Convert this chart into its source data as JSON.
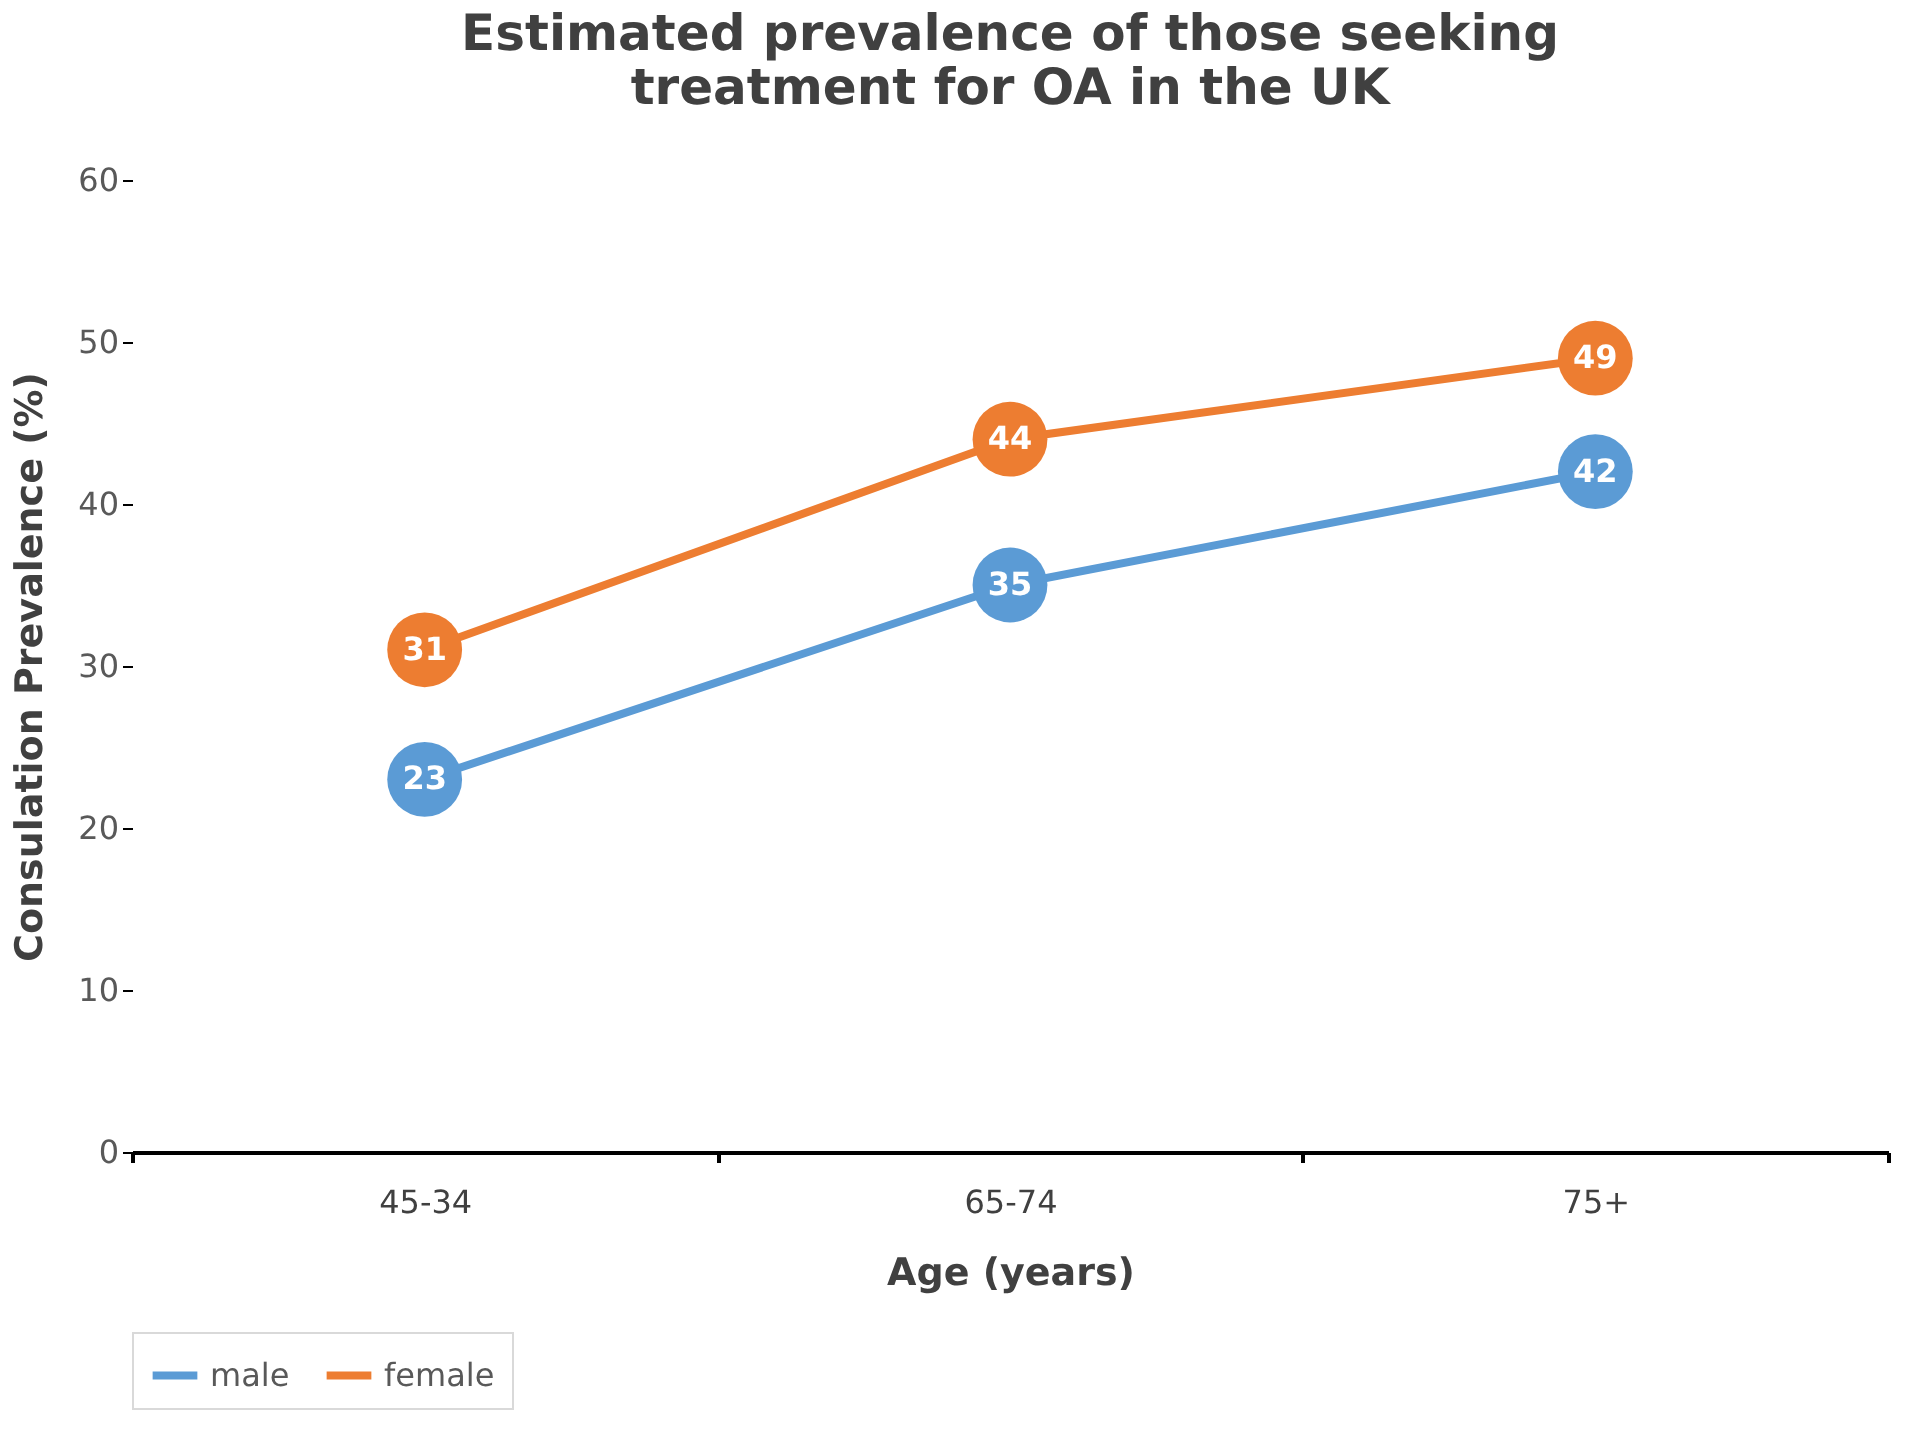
{
  "chart_data": {
    "type": "line",
    "title": "Estimated prevalence of those seeking\ntreatment for OA in the UK",
    "xlabel": "Age (years)",
    "ylabel": "Consulation  Prevalence (%)",
    "categories": [
      "45-34",
      "65-74",
      "75+"
    ],
    "series": [
      {
        "name": "male",
        "color": "#5b9bd5",
        "values": [
          23,
          35,
          42
        ]
      },
      {
        "name": "female",
        "color": "#ed7d31",
        "values": [
          31,
          44,
          49
        ]
      }
    ],
    "ylim": [
      0,
      60
    ],
    "yticks": [
      0,
      10,
      20,
      30,
      40,
      50,
      60
    ],
    "grid": false,
    "legend": "bottom left",
    "marker": "circle",
    "line_style": "solid",
    "data_labels": true
  }
}
